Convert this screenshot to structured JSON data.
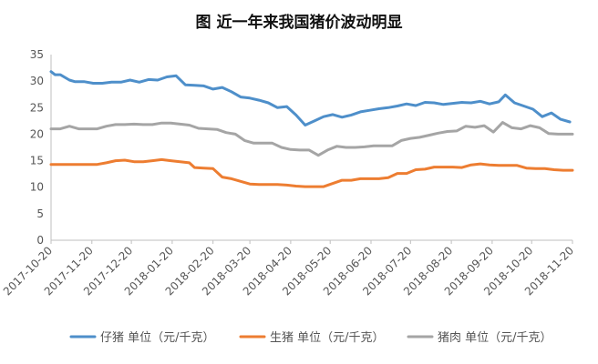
{
  "chart_data": {
    "type": "line",
    "title": "图 近一年来我国猪价波动明显",
    "xlabel": "",
    "ylabel": "",
    "ylim": [
      0,
      35
    ],
    "yticks": [
      0,
      5,
      10,
      15,
      20,
      25,
      30,
      35
    ],
    "xticks": [
      "2017-10-20",
      "2017-11-20",
      "2017-12-20",
      "2018-01-20",
      "2018-02-20",
      "2018-03-20",
      "2018-04-20",
      "2018-05-20",
      "2018-06-20",
      "2018-07-20",
      "2018-08-20",
      "2018-09-20",
      "2018-10-20",
      "2018-11-20"
    ],
    "grid": false,
    "legend": "bottom",
    "series": [
      {
        "name": "仔猪 单位（元/千克）",
        "color": "#4e8fca",
        "points": [
          [
            "2017-10-20",
            31.8
          ],
          [
            "2017-10-23",
            31.2
          ],
          [
            "2017-10-27",
            31.2
          ],
          [
            "2017-11-03",
            30.2
          ],
          [
            "2017-11-07",
            29.9
          ],
          [
            "2017-11-14",
            29.9
          ],
          [
            "2017-11-21",
            29.6
          ],
          [
            "2017-11-28",
            29.6
          ],
          [
            "2017-12-05",
            29.8
          ],
          [
            "2017-12-12",
            29.8
          ],
          [
            "2017-12-19",
            30.2
          ],
          [
            "2017-12-26",
            29.8
          ],
          [
            "2018-01-02",
            30.3
          ],
          [
            "2018-01-09",
            30.2
          ],
          [
            "2018-01-16",
            30.8
          ],
          [
            "2018-01-23",
            31.0
          ],
          [
            "2018-01-30",
            29.3
          ],
          [
            "2018-02-06",
            29.2
          ],
          [
            "2018-02-13",
            29.1
          ],
          [
            "2018-02-20",
            28.5
          ],
          [
            "2018-02-27",
            28.8
          ],
          [
            "2018-03-06",
            28.0
          ],
          [
            "2018-03-13",
            27.0
          ],
          [
            "2018-03-20",
            26.8
          ],
          [
            "2018-03-27",
            26.4
          ],
          [
            "2018-04-03",
            25.9
          ],
          [
            "2018-04-10",
            25.0
          ],
          [
            "2018-04-17",
            25.2
          ],
          [
            "2018-04-24",
            23.6
          ],
          [
            "2018-05-01",
            21.7
          ],
          [
            "2018-05-08",
            22.5
          ],
          [
            "2018-05-15",
            23.3
          ],
          [
            "2018-05-22",
            23.7
          ],
          [
            "2018-05-29",
            23.2
          ],
          [
            "2018-06-05",
            23.6
          ],
          [
            "2018-06-12",
            24.2
          ],
          [
            "2018-06-19",
            24.5
          ],
          [
            "2018-06-26",
            24.8
          ],
          [
            "2018-07-03",
            25.0
          ],
          [
            "2018-07-10",
            25.3
          ],
          [
            "2018-07-17",
            25.7
          ],
          [
            "2018-07-24",
            25.4
          ],
          [
            "2018-07-31",
            26.0
          ],
          [
            "2018-08-07",
            25.9
          ],
          [
            "2018-08-14",
            25.6
          ],
          [
            "2018-08-21",
            25.8
          ],
          [
            "2018-08-28",
            26.0
          ],
          [
            "2018-09-04",
            25.9
          ],
          [
            "2018-09-11",
            26.2
          ],
          [
            "2018-09-18",
            25.7
          ],
          [
            "2018-09-25",
            26.1
          ],
          [
            "2018-09-30",
            27.4
          ],
          [
            "2018-10-07",
            25.9
          ],
          [
            "2018-10-14",
            25.3
          ],
          [
            "2018-10-21",
            24.7
          ],
          [
            "2018-10-28",
            23.3
          ],
          [
            "2018-11-04",
            24.0
          ],
          [
            "2018-11-11",
            22.8
          ],
          [
            "2018-11-18",
            22.3
          ]
        ]
      },
      {
        "name": "生猪 单位（元/千克）",
        "color": "#ed7d31",
        "points": [
          [
            "2017-10-20",
            14.3
          ],
          [
            "2017-10-27",
            14.3
          ],
          [
            "2017-11-03",
            14.3
          ],
          [
            "2017-11-10",
            14.3
          ],
          [
            "2017-11-17",
            14.3
          ],
          [
            "2017-11-24",
            14.3
          ],
          [
            "2017-12-01",
            14.6
          ],
          [
            "2017-12-08",
            15.0
          ],
          [
            "2017-12-15",
            15.1
          ],
          [
            "2017-12-22",
            14.8
          ],
          [
            "2017-12-29",
            14.8
          ],
          [
            "2018-01-05",
            15.0
          ],
          [
            "2018-01-12",
            15.2
          ],
          [
            "2018-01-19",
            15.0
          ],
          [
            "2018-01-26",
            14.8
          ],
          [
            "2018-02-02",
            14.6
          ],
          [
            "2018-02-06",
            13.7
          ],
          [
            "2018-02-13",
            13.6
          ],
          [
            "2018-02-20",
            13.5
          ],
          [
            "2018-02-27",
            11.9
          ],
          [
            "2018-03-06",
            11.6
          ],
          [
            "2018-03-13",
            11.1
          ],
          [
            "2018-03-20",
            10.6
          ],
          [
            "2018-03-27",
            10.5
          ],
          [
            "2018-04-03",
            10.5
          ],
          [
            "2018-04-10",
            10.5
          ],
          [
            "2018-04-17",
            10.4
          ],
          [
            "2018-04-24",
            10.2
          ],
          [
            "2018-05-01",
            10.1
          ],
          [
            "2018-05-08",
            10.1
          ],
          [
            "2018-05-15",
            10.1
          ],
          [
            "2018-05-22",
            10.7
          ],
          [
            "2018-05-29",
            11.3
          ],
          [
            "2018-06-05",
            11.3
          ],
          [
            "2018-06-12",
            11.6
          ],
          [
            "2018-06-19",
            11.6
          ],
          [
            "2018-06-26",
            11.6
          ],
          [
            "2018-07-03",
            11.8
          ],
          [
            "2018-07-10",
            12.6
          ],
          [
            "2018-07-17",
            12.6
          ],
          [
            "2018-07-24",
            13.3
          ],
          [
            "2018-07-31",
            13.4
          ],
          [
            "2018-08-07",
            13.8
          ],
          [
            "2018-08-14",
            13.8
          ],
          [
            "2018-08-21",
            13.8
          ],
          [
            "2018-08-28",
            13.7
          ],
          [
            "2018-09-04",
            14.2
          ],
          [
            "2018-09-11",
            14.4
          ],
          [
            "2018-09-18",
            14.2
          ],
          [
            "2018-09-25",
            14.1
          ],
          [
            "2018-10-02",
            14.1
          ],
          [
            "2018-10-09",
            14.1
          ],
          [
            "2018-10-16",
            13.6
          ],
          [
            "2018-10-23",
            13.5
          ],
          [
            "2018-10-30",
            13.5
          ],
          [
            "2018-11-06",
            13.3
          ],
          [
            "2018-11-13",
            13.2
          ],
          [
            "2018-11-20",
            13.2
          ]
        ]
      },
      {
        "name": "猪肉 单位（元/千克）",
        "color": "#a5a5a5",
        "points": [
          [
            "2017-10-20",
            21.0
          ],
          [
            "2017-10-27",
            21.0
          ],
          [
            "2017-11-03",
            21.5
          ],
          [
            "2017-11-10",
            21.0
          ],
          [
            "2017-11-17",
            21.0
          ],
          [
            "2017-11-24",
            21.0
          ],
          [
            "2017-12-01",
            21.5
          ],
          [
            "2017-12-08",
            21.8
          ],
          [
            "2017-12-15",
            21.8
          ],
          [
            "2017-12-22",
            21.9
          ],
          [
            "2017-12-29",
            21.8
          ],
          [
            "2018-01-05",
            21.8
          ],
          [
            "2018-01-12",
            22.1
          ],
          [
            "2018-01-19",
            22.1
          ],
          [
            "2018-01-26",
            21.9
          ],
          [
            "2018-02-02",
            21.7
          ],
          [
            "2018-02-09",
            21.1
          ],
          [
            "2018-02-16",
            21.0
          ],
          [
            "2018-02-23",
            20.9
          ],
          [
            "2018-03-02",
            20.3
          ],
          [
            "2018-03-09",
            20.0
          ],
          [
            "2018-03-16",
            18.8
          ],
          [
            "2018-03-23",
            18.3
          ],
          [
            "2018-03-30",
            18.3
          ],
          [
            "2018-04-06",
            18.3
          ],
          [
            "2018-04-13",
            17.5
          ],
          [
            "2018-04-20",
            17.1
          ],
          [
            "2018-04-27",
            17.0
          ],
          [
            "2018-05-04",
            17.0
          ],
          [
            "2018-05-11",
            16.0
          ],
          [
            "2018-05-18",
            17.0
          ],
          [
            "2018-05-25",
            17.7
          ],
          [
            "2018-06-01",
            17.5
          ],
          [
            "2018-06-08",
            17.5
          ],
          [
            "2018-06-15",
            17.6
          ],
          [
            "2018-06-22",
            17.8
          ],
          [
            "2018-06-29",
            17.8
          ],
          [
            "2018-07-06",
            17.8
          ],
          [
            "2018-07-13",
            18.8
          ],
          [
            "2018-07-20",
            19.2
          ],
          [
            "2018-07-27",
            19.4
          ],
          [
            "2018-08-03",
            19.8
          ],
          [
            "2018-08-10",
            20.2
          ],
          [
            "2018-08-17",
            20.5
          ],
          [
            "2018-08-24",
            20.6
          ],
          [
            "2018-08-31",
            21.5
          ],
          [
            "2018-09-07",
            21.3
          ],
          [
            "2018-09-14",
            21.6
          ],
          [
            "2018-09-21",
            20.4
          ],
          [
            "2018-09-28",
            22.2
          ],
          [
            "2018-10-05",
            21.2
          ],
          [
            "2018-10-12",
            21.0
          ],
          [
            "2018-10-19",
            21.6
          ],
          [
            "2018-10-26",
            21.2
          ],
          [
            "2018-11-02",
            20.1
          ],
          [
            "2018-11-09",
            20.0
          ],
          [
            "2018-11-20",
            20.0
          ]
        ]
      }
    ]
  }
}
